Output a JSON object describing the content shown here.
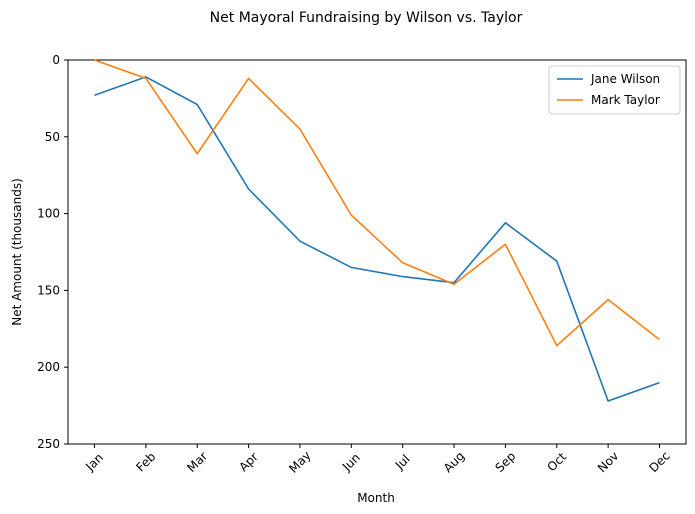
{
  "chart_data": {
    "type": "line",
    "title": "Net Mayoral Fundraising by Wilson vs. Taylor",
    "xlabel": "Month",
    "ylabel": "Net Amount (thousands)",
    "categories": [
      "Jan",
      "Feb",
      "Mar",
      "Apr",
      "May",
      "Jun",
      "Jul",
      "Aug",
      "Sep",
      "Oct",
      "Nov",
      "Dec"
    ],
    "ylim": [
      0,
      250
    ],
    "y_inverted": true,
    "yticks": [
      0,
      50,
      100,
      150,
      200,
      250
    ],
    "grid": false,
    "legend_position": "top-right",
    "series": [
      {
        "name": "Jane Wilson",
        "color": "#1f77b4",
        "values": [
          23,
          11,
          29,
          84,
          118,
          135,
          141,
          145,
          106,
          131,
          222,
          210
        ]
      },
      {
        "name": "Mark Taylor",
        "color": "#ff7f0e",
        "values": [
          0,
          12,
          61,
          12,
          45,
          101,
          132,
          146,
          120,
          186,
          156,
          182
        ]
      }
    ]
  }
}
